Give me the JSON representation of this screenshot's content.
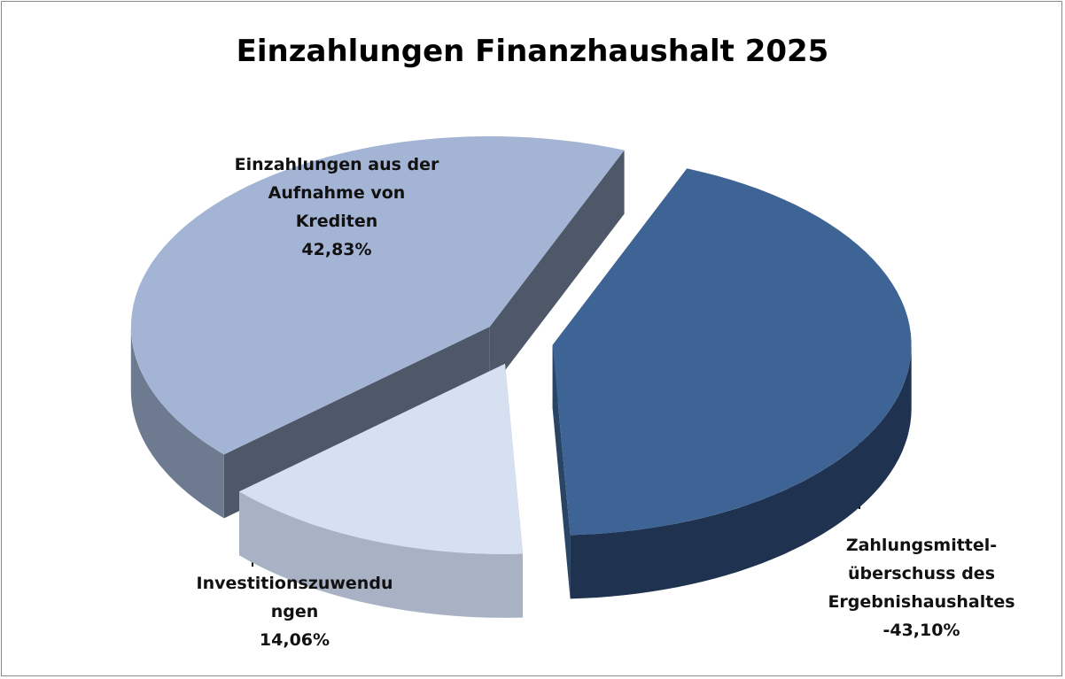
{
  "chart_data": {
    "type": "pie",
    "title": "Einzahlungen Finanzhaushalt 2025",
    "categories": [
      "Zahlungsmittel-überschuss des Ergebnishaushaltes",
      "Investitionszuwendungen",
      "Einzahlungen aus der Aufnahme von Krediten"
    ],
    "values": [
      -43.1,
      14.06,
      42.83
    ],
    "value_labels": [
      "-43,10%",
      "14,06%",
      "42,83%"
    ],
    "colors": [
      "#3e6496",
      "#d6e0f0",
      "#a4b4d4"
    ]
  }
}
